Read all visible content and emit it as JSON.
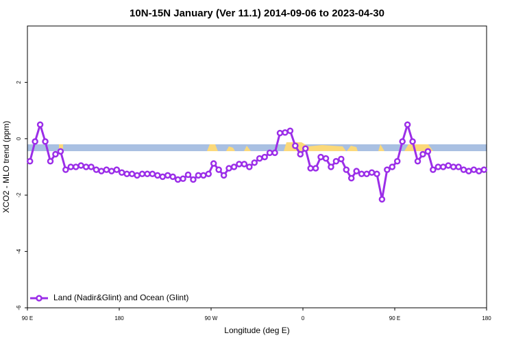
{
  "chart_data": {
    "type": "line",
    "title": "10N-15N January (Ver 11.1)   2014-09-06 to 2023-04-30",
    "x_label": "Longitude (deg E)",
    "y_label": "XCO2 - MLO trend (ppm)",
    "xlim": [
      90,
      540
    ],
    "ylim": [
      -6,
      4
    ],
    "xticks": [
      {
        "value": 90,
        "label": "90 E"
      },
      180,
      {
        "value": 270,
        "label": "90 W"
      },
      {
        "value": 360,
        "label": "0"
      },
      {
        "value": 450,
        "label": "90 E"
      },
      {
        "value": 540,
        "label": "180"
      }
    ],
    "yticks": [
      -6,
      -4,
      -2,
      0,
      2
    ],
    "legend": "bottom-left",
    "series": [
      {
        "name": "Land (Nadir&Glint) and Ocean (Glint)",
        "color": "#9b2ee8",
        "x": [
          92.5,
          97.5,
          102.5,
          107.5,
          112.5,
          117.5,
          122.5,
          127.5,
          132.5,
          137.5,
          142.5,
          147.5,
          152.5,
          157.5,
          162.5,
          167.5,
          172.5,
          177.5,
          182.5,
          187.5,
          192.5,
          197.5,
          202.5,
          207.5,
          212.5,
          217.5,
          222.5,
          227.5,
          232.5,
          237.5,
          242.5,
          247.5,
          252.5,
          257.5,
          262.5,
          267.5,
          272.5,
          277.5,
          282.5,
          287.5,
          292.5,
          297.5,
          302.5,
          307.5,
          312.5,
          317.5,
          322.5,
          327.5,
          332.5,
          337.5,
          342.5,
          347.5,
          352.5,
          357.5,
          362.5,
          367.5,
          372.5,
          377.5,
          382.5,
          387.5,
          392.5,
          397.5,
          402.5,
          407.5,
          412.5,
          417.5,
          422.5,
          427.5,
          432.5,
          437.5,
          442.5,
          447.5,
          452.5,
          457.5,
          462.5,
          467.5,
          472.5,
          477.5,
          482.5,
          487.5,
          492.5,
          497.5,
          502.5,
          507.5,
          512.5,
          517.5,
          522.5,
          527.5,
          532.5,
          537.5
        ],
        "values": [
          -0.8,
          -0.1,
          0.5,
          -0.1,
          -0.8,
          -0.55,
          -0.45,
          -1.1,
          -1.0,
          -1.0,
          -0.95,
          -1.0,
          -1.0,
          -1.1,
          -1.15,
          -1.1,
          -1.15,
          -1.1,
          -1.2,
          -1.25,
          -1.25,
          -1.3,
          -1.25,
          -1.25,
          -1.25,
          -1.3,
          -1.35,
          -1.3,
          -1.35,
          -1.45,
          -1.42,
          -1.28,
          -1.45,
          -1.3,
          -1.3,
          -1.25,
          -0.88,
          -1.1,
          -1.3,
          -1.05,
          -1.0,
          -0.9,
          -0.9,
          -1.0,
          -0.85,
          -0.7,
          -0.65,
          -0.5,
          -0.5,
          0.2,
          0.22,
          0.28,
          -0.25,
          -0.55,
          -0.35,
          -1.05,
          -1.05,
          -0.65,
          -0.7,
          -1.0,
          -0.8,
          -0.72,
          -1.1,
          -1.4,
          -1.15,
          -1.25,
          -1.25,
          -1.2,
          -1.25,
          -2.15,
          -1.1,
          -1.0,
          -0.8,
          -0.1,
          0.5,
          -0.1,
          -0.8,
          -0.55,
          -0.45,
          -1.1,
          -1.0,
          -1.0,
          -0.95,
          -1.0,
          -1.0,
          -1.1,
          -1.15,
          -1.1,
          -1.15,
          -1.1
        ]
      }
    ]
  }
}
